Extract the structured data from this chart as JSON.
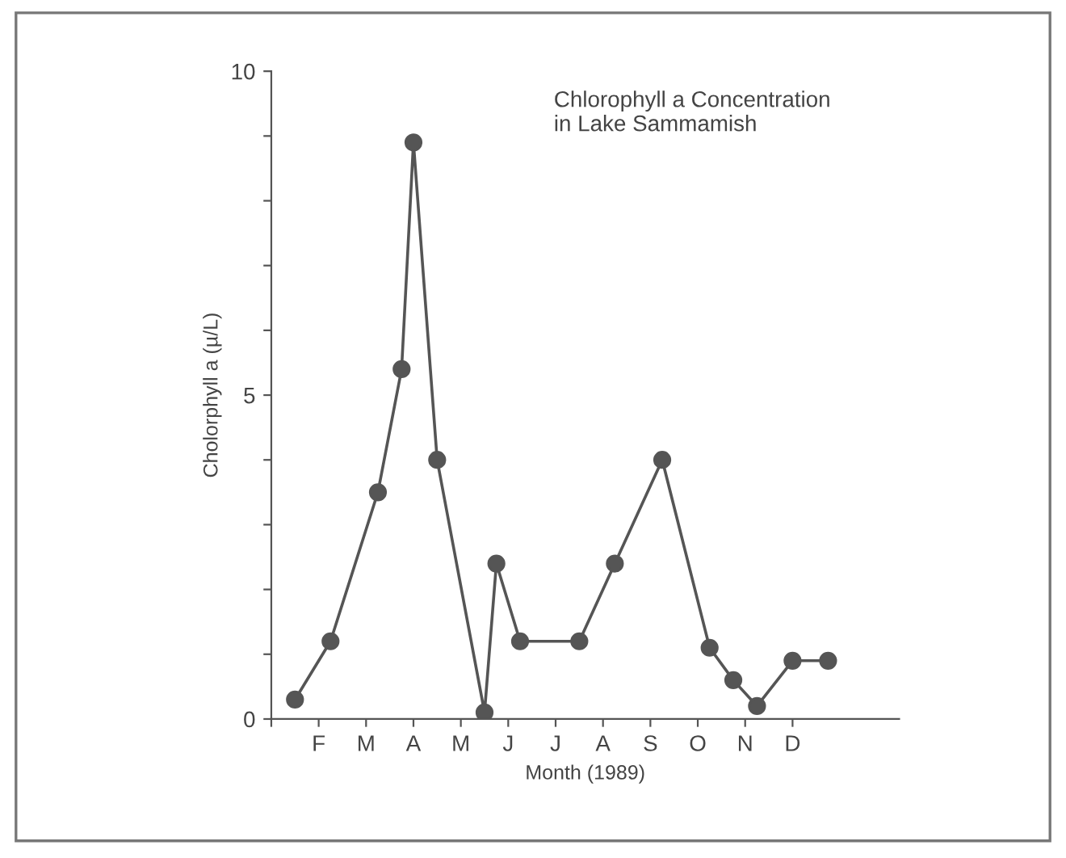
{
  "chart_data": {
    "type": "line",
    "title": "Chlorophyll a Concentration\nin Lake Sammamish",
    "xlabel": "Month (1989)",
    "ylabel": "Cholorphyll a (µ/L)",
    "categories": [
      null,
      null,
      null,
      null,
      "F",
      null,
      null,
      null,
      "M",
      null,
      null,
      null,
      "A",
      null,
      null,
      null,
      "M",
      null,
      null,
      null,
      "J",
      null,
      null,
      null,
      "J",
      null,
      null,
      null,
      "A",
      null,
      null,
      null,
      "S",
      null,
      null,
      null,
      "O",
      null,
      null,
      null,
      "N",
      null,
      null,
      null,
      "D",
      null,
      null,
      null,
      null,
      null,
      null,
      null,
      null,
      null
    ],
    "series": [
      {
        "color": "#555555",
        "values": [
          null,
          null,
          0.3,
          null,
          null,
          1.2,
          null,
          null,
          null,
          3.5,
          null,
          5.4,
          8.9,
          null,
          4.0,
          null,
          null,
          null,
          0.1,
          2.4,
          null,
          1.2,
          null,
          null,
          null,
          null,
          1.2,
          null,
          null,
          2.4,
          null,
          null,
          null,
          4.0,
          null,
          null,
          null,
          1.1,
          null,
          0.6,
          null,
          0.2,
          null,
          null,
          0.9,
          null,
          null,
          0.9,
          null,
          null,
          null,
          null,
          null,
          null
        ]
      }
    ],
    "ylim": [
      0,
      10
    ],
    "yticks": [
      0,
      {
        "value": 1,
        "label": null
      },
      {
        "value": 2,
        "label": null
      },
      {
        "value": 3,
        "label": null
      },
      {
        "value": 4,
        "label": null
      },
      5,
      {
        "value": 6,
        "label": null
      },
      {
        "value": 7,
        "label": null
      },
      {
        "value": 8,
        "label": null
      },
      {
        "value": 9,
        "label": null
      },
      10
    ],
    "marker": "circle",
    "line_style": "solid",
    "grid": false,
    "legend": false
  }
}
